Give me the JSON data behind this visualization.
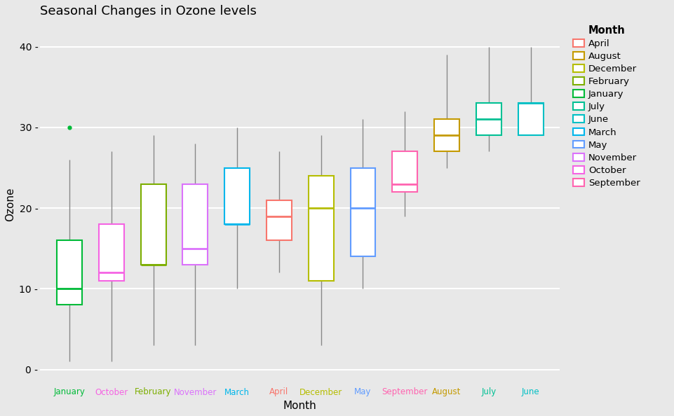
{
  "title": "Seasonal Changes in Ozone levels",
  "xlabel": "Month",
  "ylabel": "Ozone",
  "background_color": "#e8e8e8",
  "grid_color": "#ffffff",
  "months_order": [
    "January",
    "October",
    "February",
    "November",
    "March",
    "April",
    "December",
    "May",
    "September",
    "August",
    "July",
    "June"
  ],
  "month_colors": {
    "April": "#f8766d",
    "August": "#c49a00",
    "December": "#b5bd00",
    "February": "#7cae00",
    "January": "#00ba38",
    "July": "#00c094",
    "June": "#00bfc4",
    "March": "#00b6eb",
    "May": "#619cff",
    "November": "#db72fb",
    "October": "#f564e3",
    "September": "#ff64b0"
  },
  "boxplot_data": {
    "January": {
      "whislo": 1,
      "q1": 8,
      "med": 10,
      "q3": 16,
      "whishi": 26,
      "fliers": [
        30
      ]
    },
    "October": {
      "whislo": 1,
      "q1": 11,
      "med": 12,
      "q3": 18,
      "whishi": 27,
      "fliers": []
    },
    "February": {
      "whislo": 3,
      "q1": 13,
      "med": 13,
      "q3": 23,
      "whishi": 29,
      "fliers": []
    },
    "November": {
      "whislo": 3,
      "q1": 13,
      "med": 15,
      "q3": 23,
      "whishi": 28,
      "fliers": []
    },
    "March": {
      "whislo": 10,
      "q1": 18,
      "med": 18,
      "q3": 25,
      "whishi": 30,
      "fliers": []
    },
    "April": {
      "whislo": 12,
      "q1": 16,
      "med": 19,
      "q3": 21,
      "whishi": 27,
      "fliers": []
    },
    "December": {
      "whislo": 3,
      "q1": 11,
      "med": 20,
      "q3": 24,
      "whishi": 29,
      "fliers": []
    },
    "May": {
      "whislo": 10,
      "q1": 14,
      "med": 20,
      "q3": 25,
      "whishi": 31,
      "fliers": []
    },
    "September": {
      "whislo": 19,
      "q1": 22,
      "med": 23,
      "q3": 27,
      "whishi": 32,
      "fliers": []
    },
    "August": {
      "whislo": 25,
      "q1": 27,
      "med": 29,
      "q3": 31,
      "whishi": 39,
      "fliers": []
    },
    "July": {
      "whislo": 27,
      "q1": 29,
      "med": 31,
      "q3": 33,
      "whishi": 40,
      "fliers": []
    },
    "June": {
      "whislo": 29,
      "q1": 29,
      "med": 33,
      "q3": 33,
      "whishi": 40,
      "fliers": []
    }
  },
  "ylim": [
    -2,
    43
  ],
  "yticks": [
    0,
    10,
    20,
    30,
    40
  ],
  "legend_title": "Month",
  "legend_order": [
    "April",
    "August",
    "December",
    "February",
    "January",
    "July",
    "June",
    "March",
    "May",
    "November",
    "October",
    "September"
  ]
}
